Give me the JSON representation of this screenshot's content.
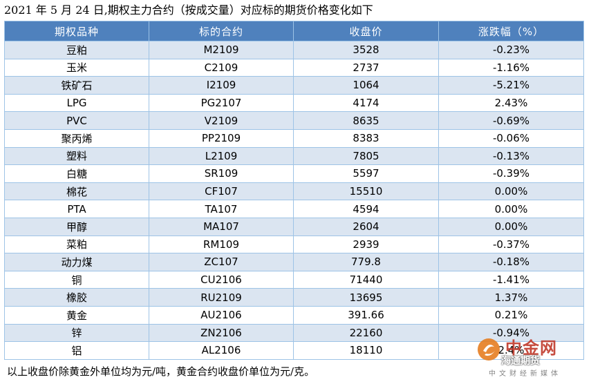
{
  "title": "2021 年 5 月 24 日,期权主力合约（按成交量）对应标的期货价格变化如下",
  "table": {
    "headers": [
      "期权品种",
      "标的合约",
      "收盘价",
      "涨跌幅（%）"
    ],
    "rows": [
      [
        "豆粕",
        "M2109",
        "3528",
        "-0.23%"
      ],
      [
        "玉米",
        "C2109",
        "2737",
        "-1.16%"
      ],
      [
        "铁矿石",
        "I2109",
        "1064",
        "-5.21%"
      ],
      [
        "LPG",
        "PG2107",
        "4174",
        "2.43%"
      ],
      [
        "PVC",
        "V2109",
        "8635",
        "-0.69%"
      ],
      [
        "聚丙烯",
        "PP2109",
        "8383",
        "-0.06%"
      ],
      [
        "塑料",
        "L2109",
        "7805",
        "-0.13%"
      ],
      [
        "白糖",
        "SR109",
        "5597",
        "-0.39%"
      ],
      [
        "棉花",
        "CF107",
        "15510",
        "0.00%"
      ],
      [
        "PTA",
        "TA107",
        "4594",
        "0.00%"
      ],
      [
        "甲醇",
        "MA107",
        "2604",
        "0.00%"
      ],
      [
        "菜粕",
        "RM109",
        "2939",
        "-0.37%"
      ],
      [
        "动力煤",
        "ZC107",
        "779.8",
        "-0.18%"
      ],
      [
        "铜",
        "CU2106",
        "71440",
        "-1.41%"
      ],
      [
        "橡胶",
        "RU2109",
        "13695",
        "1.37%"
      ],
      [
        "黄金",
        "AU2106",
        "391.66",
        "0.21%"
      ],
      [
        "锌",
        "ZN2106",
        "22160",
        "-0.94%"
      ],
      [
        "铝",
        "AL2106",
        "18110",
        "2.4%"
      ]
    ]
  },
  "note": "以上收盘价除黄金外单位均为元/吨，黄金合约收盘价单位为元/克。",
  "watermark": {
    "brand": "中金网",
    "brand2": "海通期货",
    "sub": "中文财经新媒体",
    "icon": "zhongjin-logo-icon"
  },
  "colors": {
    "header_bg": "#4f81bd",
    "row_alt_bg": "#dbe5f1",
    "border": "#9dc3e6"
  }
}
